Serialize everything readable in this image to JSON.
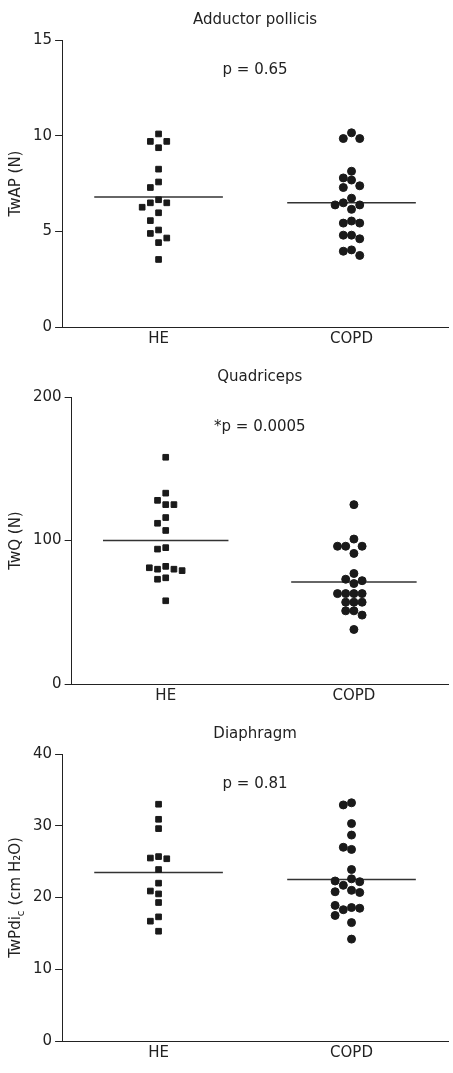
{
  "chart_data": [
    {
      "type": "scatter",
      "title": "Adductor pollicis",
      "ylabel": "TwAP (N)",
      "annotations": [
        "p = 0.65"
      ],
      "categories": [
        null,
        "HE",
        null,
        null,
        "COPD",
        null
      ],
      "ylim": [
        0,
        15
      ],
      "yticks": [
        0,
        5,
        10,
        15
      ],
      "series": [
        {
          "marker": "square",
          "color": "#1a1a1a",
          "x": [
            "HE",
            "HE",
            "HE",
            "HE",
            "HE",
            "HE",
            "HE",
            "HE",
            "HE",
            "HE",
            "HE",
            "HE",
            "HE",
            "HE",
            "HE",
            "HE",
            "HE",
            "HE"
          ],
          "values": [
            10.09,
            9.7,
            9.7,
            9.37,
            8.25,
            7.58,
            7.29,
            6.65,
            6.49,
            6.49,
            6.26,
            5.97,
            5.56,
            5.07,
            4.89,
            4.65,
            4.41,
            3.53
          ]
        },
        {
          "marker": "circle",
          "color": "#1a1a1a",
          "x": [
            "COPD",
            "COPD",
            "COPD",
            "COPD",
            "COPD",
            "COPD",
            "COPD",
            "COPD",
            "COPD",
            "COPD",
            "COPD",
            "COPD",
            "COPD",
            "COPD",
            "COPD",
            "COPD",
            "COPD",
            "COPD",
            "COPD",
            "COPD",
            "COPD",
            "COPD"
          ],
          "values": [
            10.15,
            9.85,
            9.85,
            8.14,
            7.79,
            7.68,
            7.38,
            7.29,
            6.73,
            6.49,
            6.38,
            6.38,
            6.15,
            5.54,
            5.43,
            5.43,
            4.8,
            4.8,
            4.61,
            4.03,
            3.96,
            3.74
          ]
        },
        {
          "type": "line",
          "marker": "none",
          "color": "#333333",
          "values": [
            6.8,
            6.8,
            6.8,
            null,
            null,
            null
          ]
        },
        {
          "type": "line",
          "marker": "none",
          "color": "#333333",
          "values": [
            null,
            null,
            null,
            6.49,
            6.49,
            6.49
          ]
        }
      ]
    },
    {
      "type": "scatter",
      "title": "Quadriceps",
      "ylabel": "TwQ (N)",
      "annotations": [
        "*p = 0.0005"
      ],
      "categories": [
        null,
        "HE",
        null,
        null,
        "COPD",
        null
      ],
      "ylim": [
        0,
        200
      ],
      "yticks": [
        0,
        100,
        200
      ],
      "series": [
        {
          "marker": "square",
          "color": "#1a1a1a",
          "x": [
            "HE",
            "HE",
            "HE",
            "HE",
            "HE",
            "HE",
            "HE",
            "HE",
            "HE",
            "HE",
            "HE",
            "HE",
            "HE",
            "HE",
            "HE",
            "HE",
            "HE",
            "HE"
          ],
          "values": [
            158,
            133,
            128,
            125,
            125,
            116,
            112,
            107,
            95,
            94,
            82,
            80,
            80,
            81,
            79,
            74,
            73,
            58
          ]
        },
        {
          "marker": "circle",
          "color": "#1a1a1a",
          "x": [
            "COPD",
            "COPD",
            "COPD",
            "COPD",
            "COPD",
            "COPD",
            "COPD",
            "COPD",
            "COPD",
            "COPD",
            "COPD",
            "COPD",
            "COPD",
            "COPD",
            "COPD",
            "COPD",
            "COPD",
            "COPD",
            "COPD",
            "COPD",
            "COPD"
          ],
          "values": [
            125,
            101,
            96,
            96,
            96,
            91,
            77,
            73,
            72,
            70,
            63,
            63,
            63,
            63,
            57,
            57,
            57,
            51,
            51,
            48,
            38
          ]
        },
        {
          "type": "line",
          "marker": "none",
          "color": "#333333",
          "values": [
            100,
            100,
            100,
            null,
            null,
            null
          ]
        },
        {
          "type": "line",
          "marker": "none",
          "color": "#333333",
          "values": [
            null,
            null,
            null,
            71,
            71,
            71
          ]
        }
      ]
    },
    {
      "type": "scatter",
      "title": "Diaphragm",
      "ylabel": "TwPdi$_{c}$ (cm H₂O)",
      "annotations": [
        "p = 0.81"
      ],
      "categories": [
        null,
        "HE",
        null,
        null,
        "COPD",
        null
      ],
      "ylim": [
        0,
        40
      ],
      "yticks": [
        0,
        10,
        20,
        30,
        40
      ],
      "series": [
        {
          "marker": "square",
          "color": "#1a1a1a",
          "x": [
            "HE",
            "HE",
            "HE",
            "HE",
            "HE",
            "HE",
            "HE",
            "HE",
            "HE",
            "HE",
            "HE",
            "HE",
            "HE",
            "HE"
          ],
          "values": [
            33,
            30.9,
            29.6,
            25.7,
            25.5,
            25.4,
            23.9,
            22,
            20.9,
            20.5,
            19.3,
            17.3,
            16.7,
            15.3
          ]
        },
        {
          "marker": "circle",
          "color": "#1a1a1a",
          "x": [
            "COPD",
            "COPD",
            "COPD",
            "COPD",
            "COPD",
            "COPD",
            "COPD",
            "COPD",
            "COPD",
            "COPD",
            "COPD",
            "COPD",
            "COPD",
            "COPD",
            "COPD",
            "COPD",
            "COPD",
            "COPD",
            "COPD",
            "COPD",
            "COPD"
          ],
          "values": [
            33.2,
            32.9,
            30.3,
            28.7,
            26.7,
            27,
            23.9,
            22.6,
            21.7,
            22.2,
            22.3,
            21,
            20.7,
            20.8,
            18.6,
            18.3,
            18.5,
            18.9,
            17.5,
            16.5,
            14.2
          ]
        },
        {
          "type": "line",
          "marker": "none",
          "color": "#333333",
          "values": [
            23.5,
            23.5,
            23.5,
            null,
            null,
            null
          ]
        },
        {
          "type": "line",
          "marker": "none",
          "color": "#333333",
          "values": [
            null,
            null,
            null,
            22.5,
            22.5,
            22.5
          ]
        }
      ]
    }
  ]
}
